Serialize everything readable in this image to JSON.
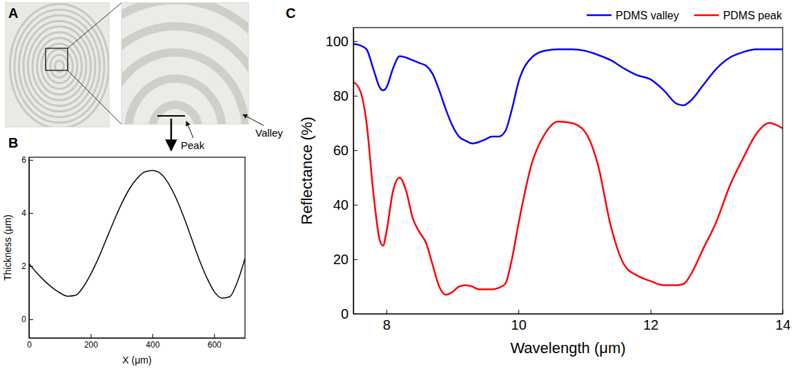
{
  "chart_data": [
    {
      "type": "image",
      "panel": "A",
      "annotations": [
        "Peak",
        "Valley"
      ]
    },
    {
      "type": "line",
      "panel": "B",
      "x_label": "X (μm)",
      "y_label": "Thickness (μm)",
      "x": [
        0,
        25,
        50,
        75,
        100,
        125,
        150,
        175,
        200,
        225,
        250,
        275,
        300,
        325,
        350,
        375,
        400,
        425,
        450,
        475,
        500,
        525,
        550,
        575,
        600,
        625,
        650,
        675,
        700
      ],
      "values": [
        2.1,
        1.75,
        1.45,
        1.2,
        1.0,
        0.87,
        0.9,
        1.2,
        1.7,
        2.3,
        3.0,
        3.7,
        4.35,
        4.9,
        5.3,
        5.55,
        5.6,
        5.5,
        5.15,
        4.6,
        3.9,
        3.1,
        2.3,
        1.6,
        1.05,
        0.8,
        0.85,
        1.4,
        2.3
      ],
      "color": "#000000",
      "xlim": [
        0,
        700
      ],
      "xticks": [
        0,
        200,
        400,
        600
      ],
      "ylim": [
        -0.7,
        6.1
      ],
      "yticks": [
        0,
        2,
        4,
        6
      ]
    },
    {
      "type": "line",
      "panel": "C",
      "x_label": "Wavelength (μm)",
      "y_label": "Reflectance (%)",
      "x": [
        7.5,
        7.6,
        7.7,
        7.8,
        7.9,
        7.95,
        8.0,
        8.1,
        8.2,
        8.3,
        8.4,
        8.5,
        8.6,
        8.7,
        8.8,
        8.9,
        9.0,
        9.1,
        9.2,
        9.3,
        9.4,
        9.5,
        9.6,
        9.7,
        9.8,
        9.9,
        10.0,
        10.2,
        10.4,
        10.6,
        10.8,
        11.0,
        11.2,
        11.4,
        11.6,
        11.8,
        12.0,
        12.2,
        12.4,
        12.5,
        12.6,
        12.8,
        13.0,
        13.2,
        13.4,
        13.6,
        13.8,
        14.0
      ],
      "series": [
        {
          "name": "PDMS valley",
          "color": "#0000ff",
          "values": [
            99,
            98.5,
            97,
            90,
            83,
            82,
            83,
            90,
            94.5,
            94,
            93,
            92,
            91,
            88,
            82,
            75,
            69,
            65,
            63.5,
            62.5,
            63,
            64,
            65,
            65,
            67,
            75,
            85,
            94,
            96.5,
            97,
            97,
            96.5,
            95,
            93,
            90,
            87.5,
            86,
            82,
            77,
            76.5,
            78,
            84,
            90,
            94,
            96,
            97,
            97,
            97
          ]
        },
        {
          "name": "PDMS peak",
          "color": "#ff0000",
          "values": [
            85,
            82,
            70,
            45,
            27,
            25,
            30,
            45,
            50,
            45,
            35,
            30,
            26,
            18,
            10,
            7,
            8,
            10,
            10.5,
            10,
            9,
            9,
            9,
            9.5,
            11,
            20,
            33,
            55,
            66,
            70.5,
            70,
            67,
            55,
            32,
            18,
            14,
            12,
            10.5,
            10.5,
            11,
            14,
            24,
            34,
            47,
            57,
            66,
            70,
            68
          ]
        }
      ],
      "xlim": [
        7.5,
        14
      ],
      "xticks": [
        8,
        10,
        12,
        14
      ],
      "ylim": [
        0,
        105
      ],
      "yticks": [
        0,
        20,
        40,
        60,
        80,
        100
      ],
      "legend": "top"
    }
  ]
}
